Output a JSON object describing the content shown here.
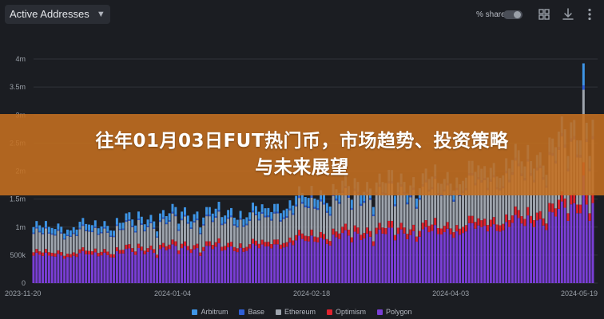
{
  "header": {
    "metric": "Active Addresses",
    "share_label": "% share"
  },
  "icons": [
    "chevron-down-icon",
    "grid-icon",
    "download-icon",
    "more-vertical-icon"
  ],
  "banner": {
    "line1": "往年01月03日FUT热门币，市场趋势、投资策略",
    "line2": "与未来展望"
  },
  "colors": {
    "background": "#1b1d22",
    "gridline": "#30333a",
    "banner": "#c57020"
  },
  "chart_data": {
    "type": "bar",
    "stacked": true,
    "title": "Active Addresses",
    "xlabel": "",
    "ylabel": "",
    "ylim": [
      0,
      4000000
    ],
    "y_ticks": [
      {
        "value": 0,
        "label": "0"
      },
      {
        "value": 500000,
        "label": "500k"
      },
      {
        "value": 1000000,
        "label": "1m"
      },
      {
        "value": 1500000,
        "label": "1.5m"
      },
      {
        "value": 2000000,
        "label": "2m"
      },
      {
        "value": 2500000,
        "label": "2.5m"
      },
      {
        "value": 3000000,
        "label": "3m"
      },
      {
        "value": 3500000,
        "label": "3.5m"
      },
      {
        "value": 4000000,
        "label": "4m"
      }
    ],
    "x_ticks": [
      "2023-11-20",
      "2024-01-04",
      "2024-02-18",
      "2024-04-03",
      "2024-05-19"
    ],
    "x_range": [
      "2023-11-20",
      "2024-05-19"
    ],
    "grid": true,
    "legend_position": "bottom",
    "approximate_totals_by_period": {
      "2023-11-20": 1000000,
      "2023-12-10": 1050000,
      "2024-01-04": 1250000,
      "2024-02-01": 1300000,
      "2024-02-18": 1600000,
      "2024-03-10": 1800000,
      "2024-04-03": 1900000,
      "2024-05-01": 2300000,
      "2024-05-19": 3000000
    },
    "series": [
      {
        "name": "Arbitrum",
        "color": "#3e95e6"
      },
      {
        "name": "Base",
        "color": "#2f5fd6"
      },
      {
        "name": "Ethereum",
        "color": "#9ea4ad"
      },
      {
        "name": "Optimism",
        "color": "#e0232f"
      },
      {
        "name": "Polygon",
        "color": "#7a3ed6"
      }
    ]
  }
}
